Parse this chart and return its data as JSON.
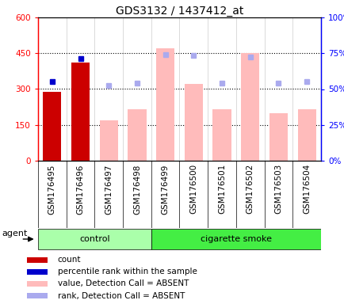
{
  "title": "GDS3132 / 1437412_at",
  "samples": [
    "GSM176495",
    "GSM176496",
    "GSM176497",
    "GSM176498",
    "GSM176499",
    "GSM176500",
    "GSM176501",
    "GSM176502",
    "GSM176503",
    "GSM176504"
  ],
  "bar_values": [
    290,
    410,
    170,
    215,
    470,
    320,
    215,
    450,
    200,
    215
  ],
  "bar_colors_dark": [
    true,
    true,
    false,
    false,
    false,
    false,
    false,
    false,
    false,
    false
  ],
  "dark_bar_color": "#cc0000",
  "light_bar_color": "#ffbbbb",
  "rank_dots_present": [
    55.0,
    71.5,
    null,
    null,
    null,
    null,
    null,
    null,
    null,
    null
  ],
  "rank_dots_absent": [
    null,
    null,
    52.5,
    54.2,
    74.2,
    73.3,
    54.2,
    72.5,
    54.2,
    55.0
  ],
  "present_dot_color": "#0000cc",
  "absent_dot_color": "#aaaaee",
  "ylim_left": [
    0,
    600
  ],
  "ylim_right": [
    0,
    100
  ],
  "yticks_left": [
    0,
    150,
    300,
    450,
    600
  ],
  "yticks_right": [
    0,
    25,
    50,
    75,
    100
  ],
  "ytick_labels_left": [
    "0",
    "150",
    "300",
    "450",
    "600"
  ],
  "ytick_labels_right": [
    "0%",
    "25%",
    "50%",
    "75%",
    "100%"
  ],
  "hlines": [
    150,
    300,
    450
  ],
  "legend_items": [
    {
      "label": "count",
      "color": "#cc0000"
    },
    {
      "label": "percentile rank within the sample",
      "color": "#0000cc"
    },
    {
      "label": "value, Detection Call = ABSENT",
      "color": "#ffbbbb"
    },
    {
      "label": "rank, Detection Call = ABSENT",
      "color": "#aaaaee"
    }
  ],
  "ctrl_color": "#aaffaa",
  "smoke_color": "#44ee44",
  "title_fontsize": 10,
  "tick_fontsize": 7.5
}
